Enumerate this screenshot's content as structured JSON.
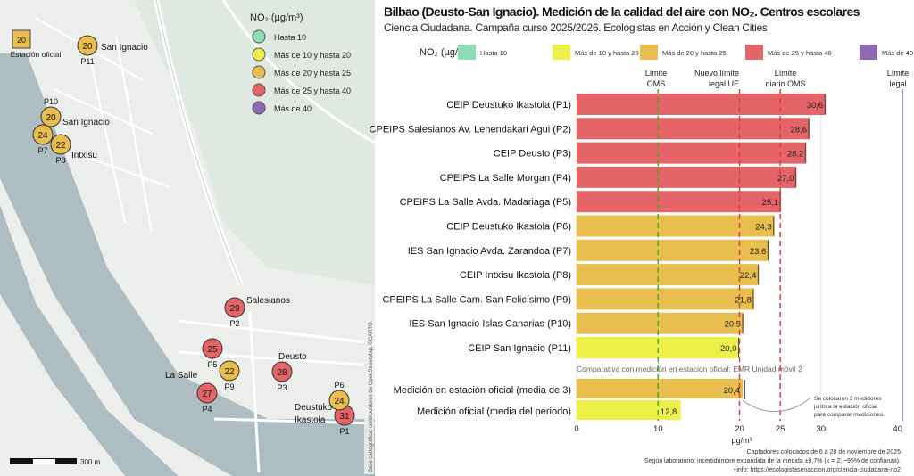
{
  "title": "Bilbao (Deusto-San Ignacio). Medición de la calidad del aire con NO₂. Centros escolares",
  "subtitle": "Ciencia Ciudadana. Campaña curso 2025/2026. Ecologistas en Acción y Clean Cities",
  "colors": {
    "hasta10": "#8fdcb5",
    "10a20": "#eef04a",
    "20a25": "#e8bf4e",
    "25a40": "#e46468",
    "mas40": "#8e6bb0"
  },
  "legend": {
    "title": "NO₂ (µg/m³)",
    "items": [
      {
        "label": "Hasta 10",
        "color": "#8fdcb5"
      },
      {
        "label": "Más de 10 y hasta 20",
        "color": "#eef04a"
      },
      {
        "label": "Más de 20 y hasta 25",
        "color": "#e8bf4e"
      },
      {
        "label": "Más de 25 y hasta 40",
        "color": "#e46468"
      },
      {
        "label": "Más de 40",
        "color": "#8e6bb0"
      }
    ]
  },
  "chart_data": {
    "type": "bar",
    "orientation": "horizontal",
    "xlabel": "µg/m³",
    "xlim": [
      0,
      40
    ],
    "xticks": [
      "0",
      "10",
      "20",
      "30",
      "40"
    ],
    "extra_ticks": [
      "25"
    ],
    "categories": [
      "CEIP Deustuko Ikastola (P1)",
      "CPEIPS Salesianos Av. Lehendakari Agui (P2)",
      "CEIP Deusto (P3)",
      "CPEIPS La Salle Morgan (P4)",
      "CPEIPS La Salle Avda. Madariaga (P5)",
      "CEIP Deustuko Ikastola (P6)",
      "IES San Ignacio Avda. Zarandoa (P7)",
      "CEIP Intxisu Ikastola (P8)",
      "CPEIPS La Salle Cam. San Felicísimo (P9)",
      "IES San Ignacio Islas Canarias (P10)",
      "CEIP San Ignacio (P11)"
    ],
    "values": [
      30.6,
      28.6,
      28.2,
      27.0,
      25.1,
      24.3,
      23.6,
      22.4,
      21.8,
      20.5,
      20.0
    ],
    "value_labels": [
      "30,6",
      "28,6",
      "28,2",
      "27,0",
      "25,1",
      "24,3",
      "23,6",
      "22,4",
      "21,8",
      "20,5",
      "20,0"
    ],
    "comparison": {
      "heading": "Comparativa con medición en estación oficial: EMR Unidad móvil 2",
      "categories": [
        "Medición en estación oficial (media de 3)",
        "Medición oficial (media del periodo)"
      ],
      "values": [
        20.4,
        12.8
      ],
      "value_labels": [
        "20,4",
        "12,8"
      ]
    },
    "reference_lines": [
      {
        "value": 10,
        "label": "Límite OMS",
        "lines": [
          "Límite",
          "OMS"
        ],
        "color": "#5aa02c",
        "style": "dashed"
      },
      {
        "value": 20,
        "label": "Nuevo límite legal UE",
        "lines": [
          "Nuevo límite",
          "legal UE"
        ],
        "color": "#d0424a",
        "style": "dashed"
      },
      {
        "value": 25,
        "label": "Límite diario OMS",
        "lines": [
          "Límite",
          "diario OMS"
        ],
        "color": "#d0424a",
        "style": "dashed"
      },
      {
        "value": 40,
        "label": "Límite legal",
        "lines": [
          "Límite",
          "legal"
        ],
        "color": "#8e6bb0",
        "style": "solid"
      }
    ],
    "annotation": [
      "Se  colocaron 3 medidores",
      "junto a la estación oficial",
      "para comparar mediciones."
    ],
    "grid": true,
    "legend_placement": "top"
  },
  "footer": [
    "Captadores colocados de 6 a 28 de noviembre de 2025",
    "Según laboratorio: incertidumbre expandida de la medida ±9,7% (k = 2; ~95% de confianza).",
    "+info: https://ecologistasenaccion.org/ciencia-ciudadana-no2"
  ],
  "map": {
    "legend_title": "NO₂ (µg/m³)",
    "station": {
      "value": "20",
      "label": "Estación oficial"
    },
    "points": [
      {
        "id": "P1",
        "value": "31",
        "color": "#e46468"
      },
      {
        "id": "P2",
        "value": "29",
        "color": "#e46468"
      },
      {
        "id": "P3",
        "value": "28",
        "color": "#e46468"
      },
      {
        "id": "P4",
        "value": "27",
        "color": "#e46468"
      },
      {
        "id": "P5",
        "value": "25",
        "color": "#e46468"
      },
      {
        "id": "P6",
        "value": "24",
        "color": "#e8bf4e"
      },
      {
        "id": "P7",
        "value": "24",
        "color": "#e8bf4e"
      },
      {
        "id": "P8",
        "value": "22",
        "color": "#e8bf4e"
      },
      {
        "id": "P9",
        "value": "22",
        "color": "#e8bf4e"
      },
      {
        "id": "P10",
        "value": "20",
        "color": "#e8bf4e"
      },
      {
        "id": "P11",
        "value": "20",
        "color": "#e8bf4e"
      }
    ],
    "place_labels": [
      "San Ignacio",
      "San Ignacio",
      "Intxisu",
      "Salesianos",
      "La Salle",
      "Deusto",
      "Deustuko",
      "Ikastola"
    ],
    "scale_label": "300 m",
    "attribution": "Base cartográfica: contribuidores de OpenStreetMap, ©CARTO."
  }
}
